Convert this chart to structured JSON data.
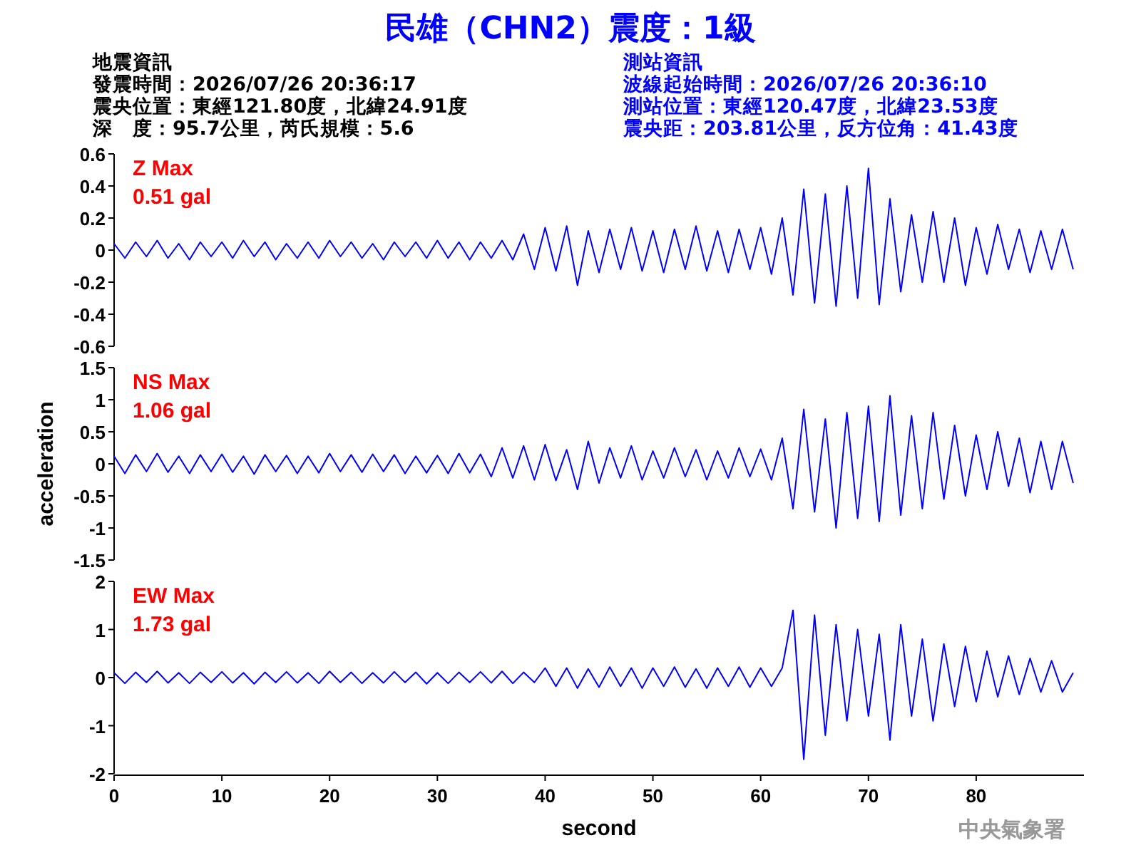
{
  "chart_data": [
    {
      "type": "line",
      "title": "民雄（CHN2）震度：1級",
      "annotations": [
        "地震資訊",
        "發震時間：2026/07/26 20:36:17",
        "震央位置：東經121.80度，北緯24.91度",
        "深　度：95.7公里，芮氏規模：5.6",
        "測站資訊",
        "波線起始時間：2026/07/26 20:36:10",
        "測站位置：東經120.47度，北緯23.53度",
        "震央距：203.81公里，反方位角：41.43度",
        "Z Max",
        "0.51 gal"
      ],
      "x": [
        0,
        1,
        2,
        3,
        4,
        5,
        6,
        7,
        8,
        9,
        10,
        11,
        12,
        13,
        14,
        15,
        16,
        17,
        18,
        19,
        20,
        21,
        22,
        23,
        24,
        25,
        26,
        27,
        28,
        29,
        30,
        31,
        32,
        33,
        34,
        35,
        36,
        37,
        38,
        39,
        40,
        41,
        42,
        43,
        44,
        45,
        46,
        47,
        48,
        49,
        50,
        51,
        52,
        53,
        54,
        55,
        56,
        57,
        58,
        59,
        60,
        61,
        62,
        63,
        64,
        65,
        66,
        67,
        68,
        69,
        70,
        71,
        72,
        73,
        74,
        75,
        76,
        77,
        78,
        79,
        80,
        81,
        82,
        83,
        84,
        85,
        86,
        87,
        88,
        89
      ],
      "ylim": [
        -0.6,
        0.6
      ],
      "yticks": [
        -0.6,
        -0.4,
        -0.2,
        0,
        0.2,
        0.4,
        0.6
      ],
      "tick_labels": "y",
      "color": "#0000ff",
      "values": [
        0.04,
        -0.05,
        0.05,
        -0.04,
        0.06,
        -0.05,
        0.04,
        -0.06,
        0.05,
        -0.04,
        0.05,
        -0.05,
        0.06,
        -0.04,
        0.05,
        -0.06,
        0.04,
        -0.05,
        0.05,
        -0.05,
        0.06,
        -0.04,
        0.05,
        -0.05,
        0.04,
        -0.06,
        0.05,
        -0.04,
        0.05,
        -0.05,
        0.06,
        -0.05,
        0.05,
        -0.06,
        0.05,
        -0.05,
        0.06,
        -0.06,
        0.1,
        -0.12,
        0.14,
        -0.13,
        0.15,
        -0.22,
        0.12,
        -0.14,
        0.13,
        -0.12,
        0.14,
        -0.13,
        0.12,
        -0.14,
        0.13,
        -0.12,
        0.15,
        -0.13,
        0.12,
        -0.14,
        0.13,
        -0.12,
        0.14,
        -0.15,
        0.2,
        -0.28,
        0.38,
        -0.33,
        0.35,
        -0.35,
        0.4,
        -0.3,
        0.51,
        -0.34,
        0.32,
        -0.26,
        0.22,
        -0.2,
        0.24,
        -0.2,
        0.2,
        -0.22,
        0.14,
        -0.15,
        0.16,
        -0.12,
        0.13,
        -0.14,
        0.12,
        -0.12,
        0.13,
        -0.12
      ]
    },
    {
      "type": "line",
      "ylabel": "acceleration",
      "annotations": [
        "NS Max",
        "1.06 gal"
      ],
      "x": [
        0,
        1,
        2,
        3,
        4,
        5,
        6,
        7,
        8,
        9,
        10,
        11,
        12,
        13,
        14,
        15,
        16,
        17,
        18,
        19,
        20,
        21,
        22,
        23,
        24,
        25,
        26,
        27,
        28,
        29,
        30,
        31,
        32,
        33,
        34,
        35,
        36,
        37,
        38,
        39,
        40,
        41,
        42,
        43,
        44,
        45,
        46,
        47,
        48,
        49,
        50,
        51,
        52,
        53,
        54,
        55,
        56,
        57,
        58,
        59,
        60,
        61,
        62,
        63,
        64,
        65,
        66,
        67,
        68,
        69,
        70,
        71,
        72,
        73,
        74,
        75,
        76,
        77,
        78,
        79,
        80,
        81,
        82,
        83,
        84,
        85,
        86,
        87,
        88,
        89
      ],
      "ylim": [
        -1.5,
        1.5
      ],
      "yticks": [
        -1.5,
        -1,
        -0.5,
        0,
        0.5,
        1,
        1.5
      ],
      "tick_labels": "y",
      "color": "#0000ff",
      "values": [
        0.12,
        -0.15,
        0.14,
        -0.12,
        0.16,
        -0.13,
        0.12,
        -0.15,
        0.14,
        -0.12,
        0.15,
        -0.13,
        0.12,
        -0.16,
        0.14,
        -0.12,
        0.13,
        -0.15,
        0.12,
        -0.14,
        0.16,
        -0.12,
        0.14,
        -0.13,
        0.15,
        -0.12,
        0.14,
        -0.15,
        0.12,
        -0.14,
        0.13,
        -0.15,
        0.16,
        -0.14,
        0.15,
        -0.2,
        0.25,
        -0.22,
        0.28,
        -0.25,
        0.3,
        -0.26,
        0.22,
        -0.4,
        0.35,
        -0.3,
        0.25,
        -0.22,
        0.28,
        -0.25,
        0.2,
        -0.22,
        0.25,
        -0.2,
        0.22,
        -0.25,
        0.2,
        -0.22,
        0.25,
        -0.2,
        0.23,
        -0.25,
        0.4,
        -0.7,
        0.85,
        -0.75,
        0.7,
        -1.0,
        0.8,
        -0.85,
        0.9,
        -0.9,
        1.06,
        -0.8,
        0.75,
        -0.7,
        0.8,
        -0.55,
        0.6,
        -0.5,
        0.45,
        -0.4,
        0.5,
        -0.35,
        0.4,
        -0.45,
        0.35,
        -0.4,
        0.35,
        -0.3
      ]
    },
    {
      "type": "line",
      "xlabel": "second",
      "annotations": [
        "EW Max",
        "1.73 gal",
        "中央氣象署"
      ],
      "x": [
        0,
        1,
        2,
        3,
        4,
        5,
        6,
        7,
        8,
        9,
        10,
        11,
        12,
        13,
        14,
        15,
        16,
        17,
        18,
        19,
        20,
        21,
        22,
        23,
        24,
        25,
        26,
        27,
        28,
        29,
        30,
        31,
        32,
        33,
        34,
        35,
        36,
        37,
        38,
        39,
        40,
        41,
        42,
        43,
        44,
        45,
        46,
        47,
        48,
        49,
        50,
        51,
        52,
        53,
        54,
        55,
        56,
        57,
        58,
        59,
        60,
        61,
        62,
        63,
        64,
        65,
        66,
        67,
        68,
        69,
        70,
        71,
        72,
        73,
        74,
        75,
        76,
        77,
        78,
        79,
        80,
        81,
        82,
        83,
        84,
        85,
        86,
        87,
        88,
        89
      ],
      "xlim": [
        0,
        90
      ],
      "xticks": [
        0,
        10,
        20,
        30,
        40,
        50,
        60,
        70,
        80
      ],
      "ylim": [
        -2,
        2
      ],
      "yticks": [
        -2,
        -1,
        0,
        1,
        2
      ],
      "color": "#0000ff",
      "values": [
        0.1,
        -0.12,
        0.11,
        -0.1,
        0.13,
        -0.11,
        0.1,
        -0.12,
        0.11,
        -0.1,
        0.12,
        -0.11,
        0.1,
        -0.13,
        0.11,
        -0.1,
        0.12,
        -0.11,
        0.1,
        -0.12,
        0.13,
        -0.1,
        0.11,
        -0.12,
        0.1,
        -0.11,
        0.12,
        -0.1,
        0.11,
        -0.13,
        0.1,
        -0.12,
        0.11,
        -0.1,
        0.12,
        -0.11,
        0.13,
        -0.12,
        0.11,
        -0.1,
        0.2,
        -0.18,
        0.2,
        -0.22,
        0.18,
        -0.2,
        0.22,
        -0.18,
        0.2,
        -0.22,
        0.2,
        -0.18,
        0.22,
        -0.2,
        0.18,
        -0.22,
        0.2,
        -0.18,
        0.22,
        -0.2,
        0.2,
        -0.18,
        0.2,
        1.4,
        -1.7,
        1.3,
        -1.2,
        1.1,
        -0.9,
        1.0,
        -0.8,
        0.9,
        -1.3,
        1.1,
        -0.8,
        0.8,
        -0.9,
        0.7,
        -0.6,
        0.65,
        -0.5,
        0.55,
        -0.4,
        0.45,
        -0.35,
        0.4,
        -0.3,
        0.35,
        -0.3,
        0.1
      ]
    }
  ]
}
